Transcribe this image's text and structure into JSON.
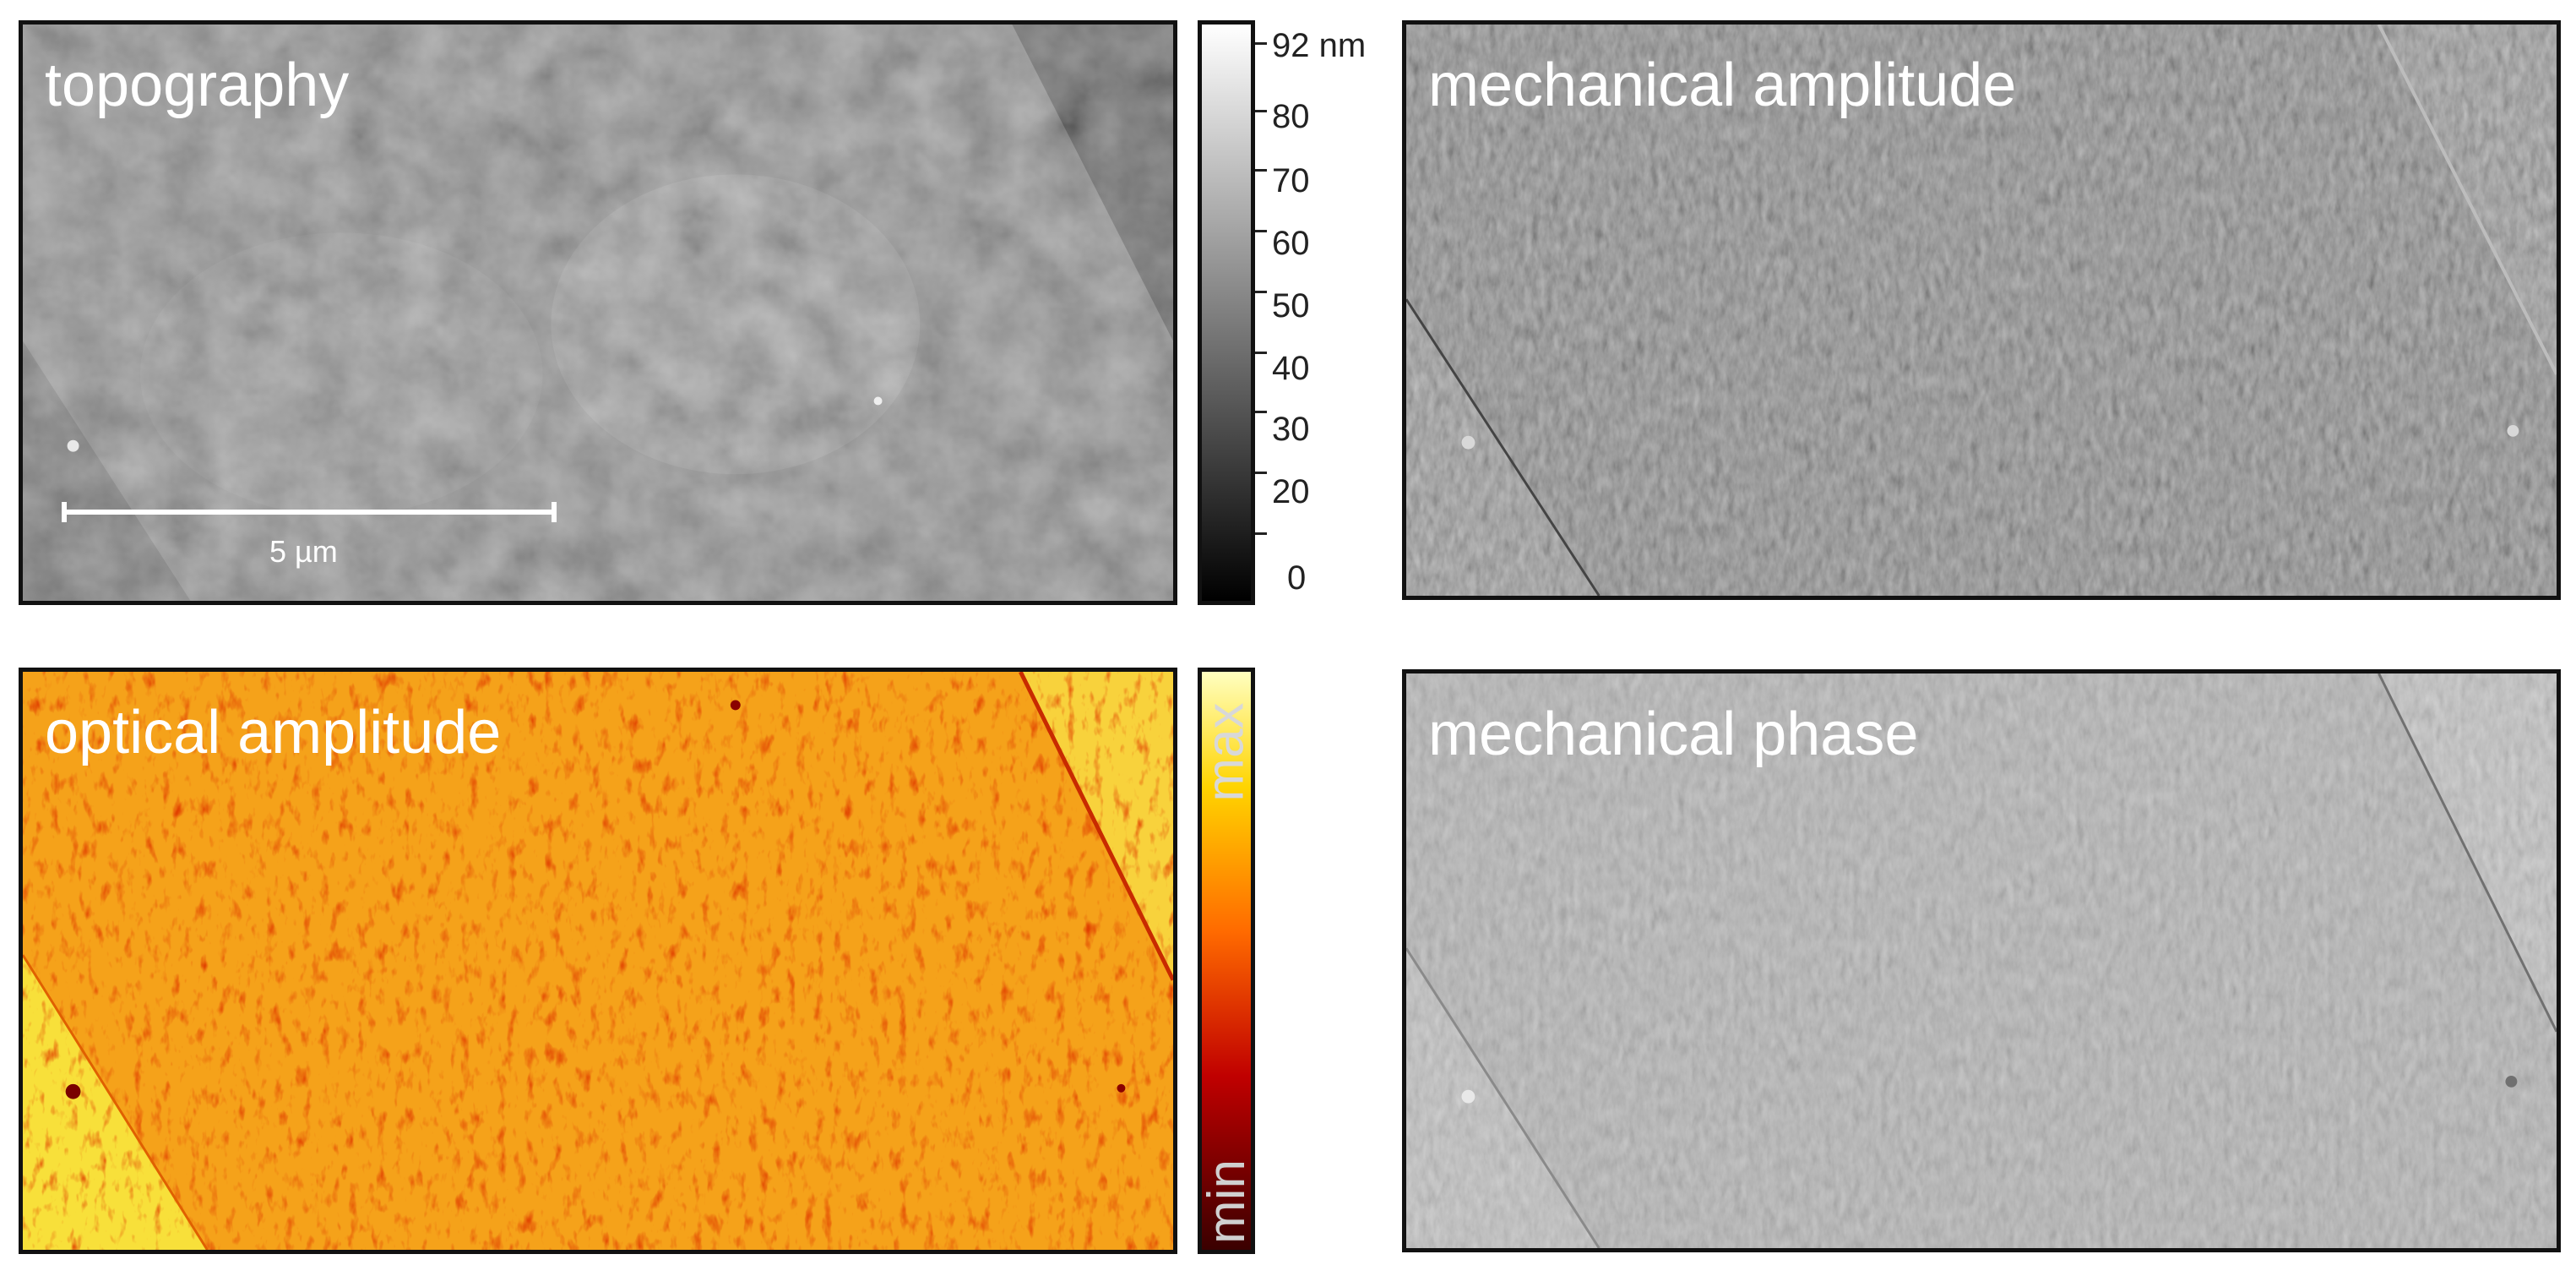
{
  "panels": {
    "topography": {
      "label": "topography"
    },
    "mechanical_amplitude": {
      "label": "mechanical amplitude"
    },
    "optical_amplitude": {
      "label": "optical amplitude"
    },
    "mechanical_phase": {
      "label": "mechanical phase"
    }
  },
  "scalebar": {
    "label": "5 µm"
  },
  "height_colorbar": {
    "ticks": [
      "92 nm",
      "80",
      "70",
      "60",
      "50",
      "40",
      "30",
      "20",
      "0"
    ],
    "range": [
      "0 nm",
      "92 nm"
    ],
    "colors": [
      "#000000",
      "#ffffff"
    ]
  },
  "optical_colorbar": {
    "min_label": "min",
    "max_label": "max",
    "colors": [
      "#3a0000",
      "#c00000",
      "#ff6a00",
      "#ffd400",
      "#ffffc0"
    ]
  }
}
